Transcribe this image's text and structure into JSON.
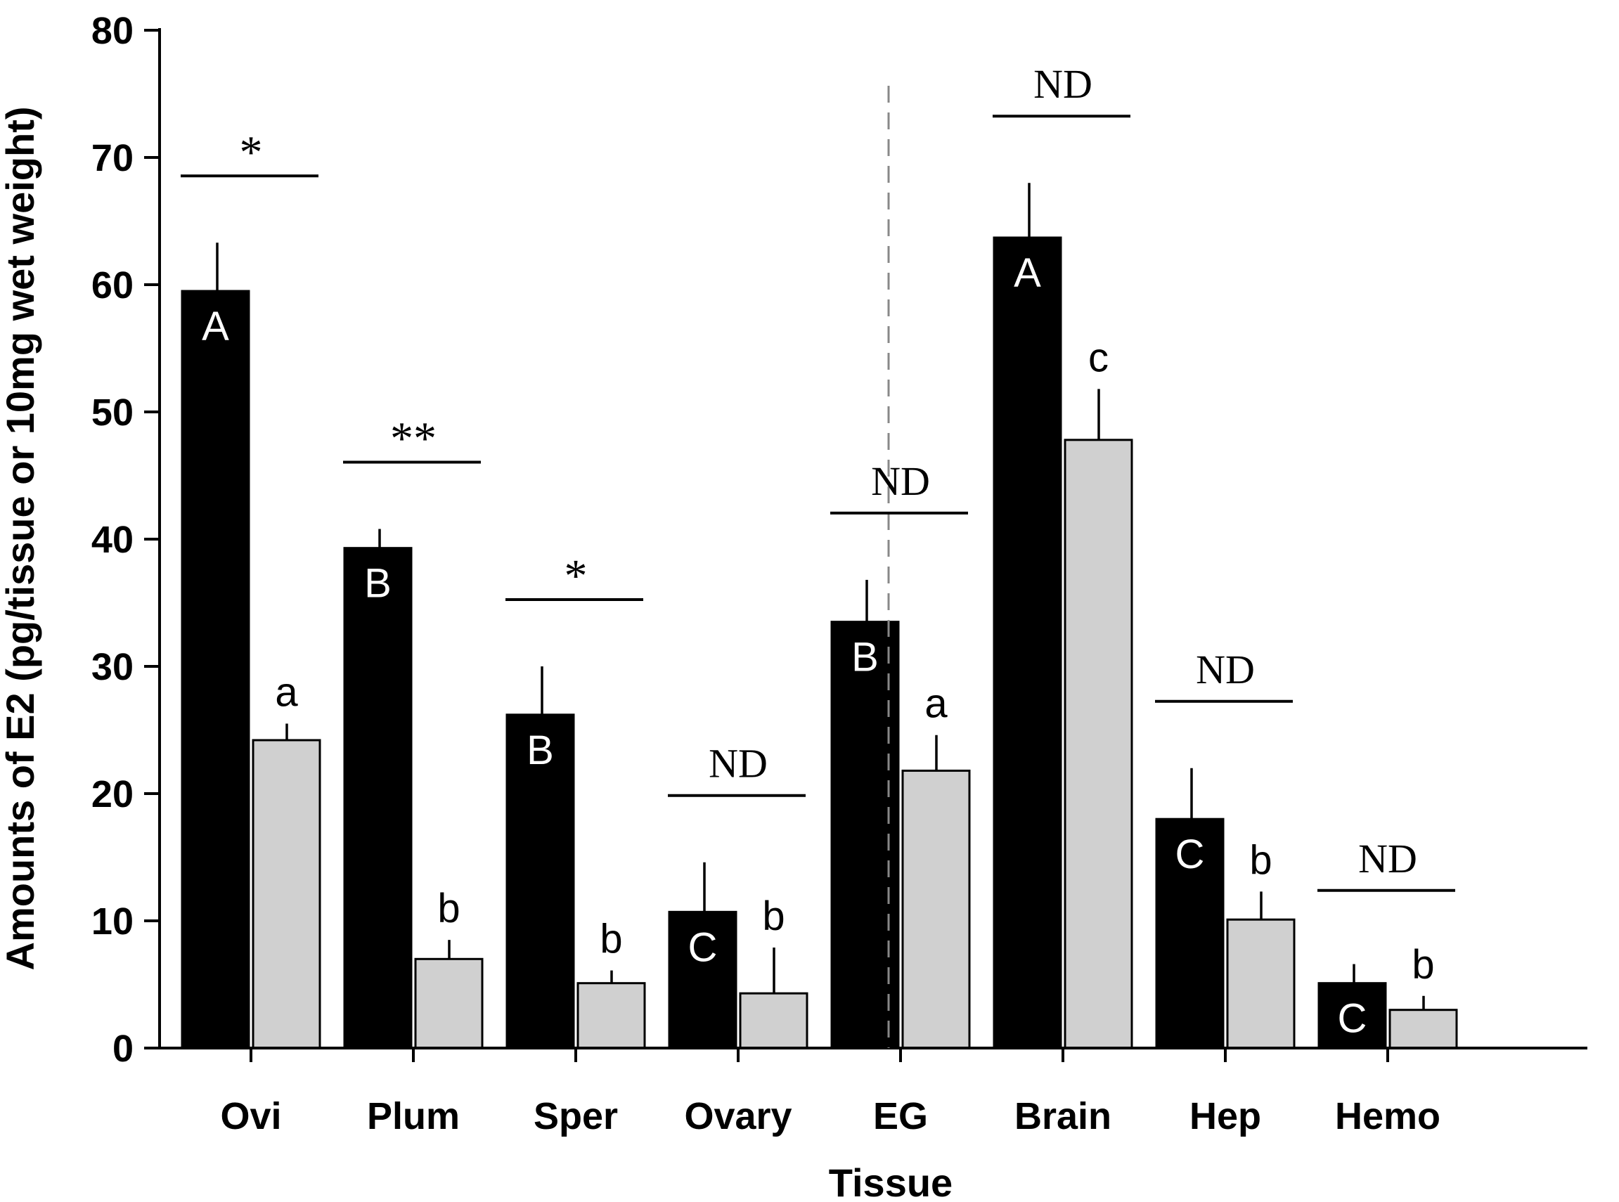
{
  "chart_data": {
    "type": "bar",
    "title": "",
    "xlabel": "Tissue",
    "ylabel": "Amounts of E2 (pg/tissue or 10mg wet weight)",
    "ylim": [
      0,
      80
    ],
    "yticks": [
      0,
      10,
      20,
      30,
      40,
      50,
      60,
      70,
      80
    ],
    "categories": [
      "Ovi",
      "Plum",
      "Sper",
      "Ovary",
      "EG",
      "Brain",
      "Hep",
      "Hemo"
    ],
    "series": [
      {
        "name": "black",
        "color": "#000000",
        "values": [
          59.5,
          39.3,
          26.2,
          10.7,
          33.5,
          63.7,
          18.0,
          5.1
        ],
        "errors": [
          3.8,
          1.5,
          3.8,
          3.9,
          3.3,
          4.3,
          4.0,
          1.5
        ],
        "letters": [
          "A",
          "B",
          "B",
          "C",
          "B",
          "A",
          "C",
          "C"
        ]
      },
      {
        "name": "gray",
        "color": "#d0d0d0",
        "values": [
          24.2,
          7.0,
          5.1,
          4.3,
          21.8,
          47.8,
          10.1,
          3.0
        ],
        "errors": [
          1.3,
          1.5,
          1.0,
          3.6,
          2.8,
          4.0,
          2.2,
          1.1
        ],
        "letters": [
          "a",
          "b",
          "b",
          "b",
          "a",
          "c",
          "b",
          "b"
        ]
      }
    ],
    "significance": [
      "*",
      "**",
      "*",
      "ND",
      "ND",
      "ND",
      "ND",
      "ND"
    ],
    "divider_after_category": "Ovary"
  }
}
